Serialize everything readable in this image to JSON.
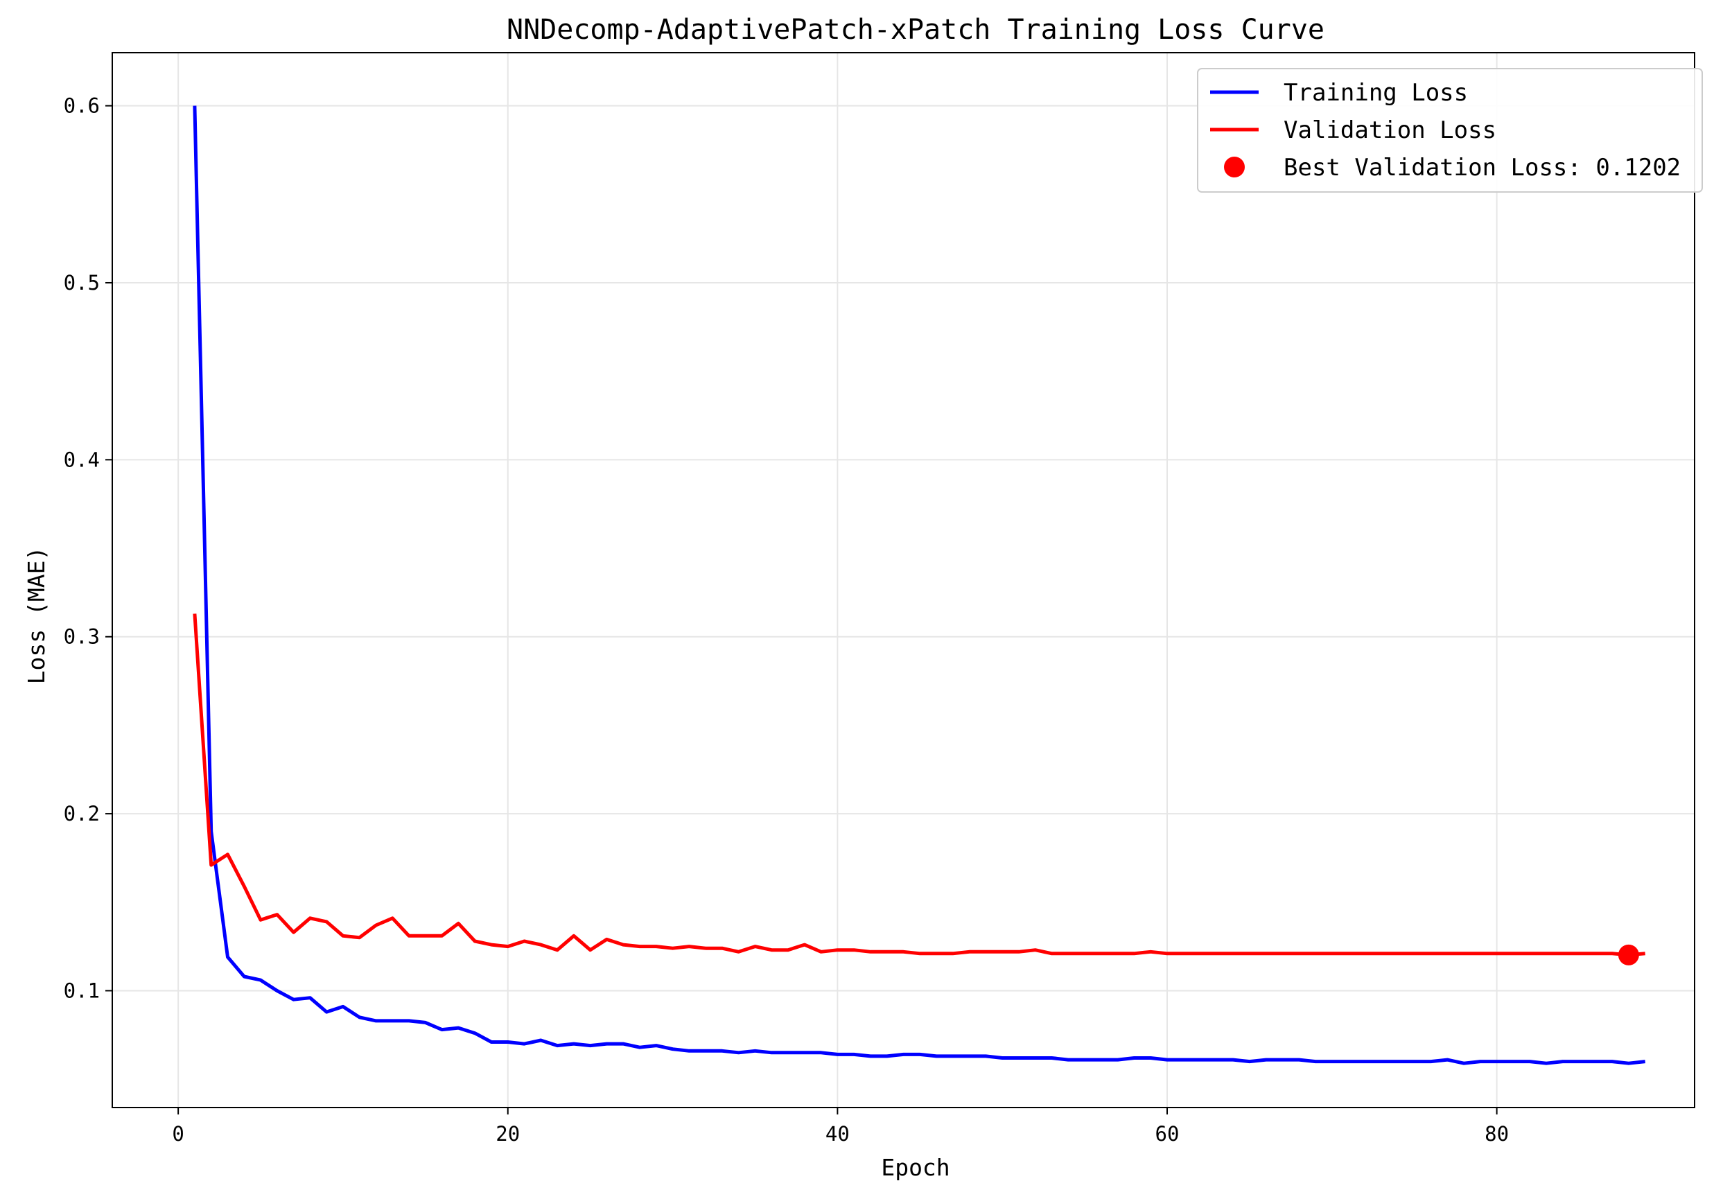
{
  "chart_data": {
    "type": "line",
    "title": "NNDecomp-AdaptivePatch-xPatch Training Loss Curve",
    "xlabel": "Epoch",
    "ylabel": "Loss (MAE)",
    "xlim": [
      -4,
      92
    ],
    "ylim": [
      0.034,
      0.63
    ],
    "xticks": [
      0,
      20,
      40,
      60,
      80
    ],
    "yticks": [
      0.1,
      0.2,
      0.3,
      0.4,
      0.5,
      0.6
    ],
    "ytick_labels": [
      "0.1",
      "0.2",
      "0.3",
      "0.4",
      "0.5",
      "0.6"
    ],
    "grid": true,
    "legend_position": "upper right",
    "series": [
      {
        "name": "Training Loss",
        "color": "#0000ff",
        "x": [
          1,
          2,
          3,
          4,
          5,
          6,
          7,
          8,
          9,
          10,
          11,
          12,
          13,
          14,
          15,
          16,
          17,
          18,
          19,
          20,
          21,
          22,
          23,
          24,
          25,
          26,
          27,
          28,
          29,
          30,
          31,
          32,
          33,
          34,
          35,
          36,
          37,
          38,
          39,
          40,
          41,
          42,
          43,
          44,
          45,
          46,
          47,
          48,
          49,
          50,
          51,
          52,
          53,
          54,
          55,
          56,
          57,
          58,
          59,
          60,
          61,
          62,
          63,
          64,
          65,
          66,
          67,
          68,
          69,
          70,
          71,
          72,
          73,
          74,
          75,
          76,
          77,
          78,
          79,
          80,
          81,
          82,
          83,
          84,
          85,
          86,
          87,
          88,
          89
        ],
        "values": [
          0.6,
          0.19,
          0.119,
          0.108,
          0.106,
          0.1,
          0.095,
          0.096,
          0.088,
          0.091,
          0.085,
          0.083,
          0.083,
          0.083,
          0.082,
          0.078,
          0.079,
          0.076,
          0.071,
          0.071,
          0.07,
          0.072,
          0.069,
          0.07,
          0.069,
          0.07,
          0.07,
          0.068,
          0.069,
          0.067,
          0.066,
          0.066,
          0.066,
          0.065,
          0.066,
          0.065,
          0.065,
          0.065,
          0.065,
          0.064,
          0.064,
          0.063,
          0.063,
          0.064,
          0.064,
          0.063,
          0.063,
          0.063,
          0.063,
          0.062,
          0.062,
          0.062,
          0.062,
          0.061,
          0.061,
          0.061,
          0.061,
          0.062,
          0.062,
          0.061,
          0.061,
          0.061,
          0.061,
          0.061,
          0.06,
          0.061,
          0.061,
          0.061,
          0.06,
          0.06,
          0.06,
          0.06,
          0.06,
          0.06,
          0.06,
          0.06,
          0.061,
          0.059,
          0.06,
          0.06,
          0.06,
          0.06,
          0.059,
          0.06,
          0.06,
          0.06,
          0.06,
          0.059,
          0.06
        ]
      },
      {
        "name": "Validation Loss",
        "color": "#ff0000",
        "x": [
          1,
          2,
          3,
          4,
          5,
          6,
          7,
          8,
          9,
          10,
          11,
          12,
          13,
          14,
          15,
          16,
          17,
          18,
          19,
          20,
          21,
          22,
          23,
          24,
          25,
          26,
          27,
          28,
          29,
          30,
          31,
          32,
          33,
          34,
          35,
          36,
          37,
          38,
          39,
          40,
          41,
          42,
          43,
          44,
          45,
          46,
          47,
          48,
          49,
          50,
          51,
          52,
          53,
          54,
          55,
          56,
          57,
          58,
          59,
          60,
          61,
          62,
          63,
          64,
          65,
          66,
          67,
          68,
          69,
          70,
          71,
          72,
          73,
          74,
          75,
          76,
          77,
          78,
          79,
          80,
          81,
          82,
          83,
          84,
          85,
          86,
          87,
          88,
          89
        ],
        "values": [
          0.313,
          0.171,
          0.177,
          0.159,
          0.14,
          0.143,
          0.133,
          0.141,
          0.139,
          0.131,
          0.13,
          0.137,
          0.141,
          0.131,
          0.131,
          0.131,
          0.138,
          0.128,
          0.126,
          0.125,
          0.128,
          0.126,
          0.123,
          0.131,
          0.123,
          0.129,
          0.126,
          0.125,
          0.125,
          0.124,
          0.125,
          0.124,
          0.124,
          0.122,
          0.125,
          0.123,
          0.123,
          0.126,
          0.122,
          0.123,
          0.123,
          0.122,
          0.122,
          0.122,
          0.121,
          0.121,
          0.121,
          0.122,
          0.122,
          0.122,
          0.122,
          0.123,
          0.121,
          0.121,
          0.121,
          0.121,
          0.121,
          0.121,
          0.122,
          0.121,
          0.121,
          0.121,
          0.121,
          0.121,
          0.121,
          0.121,
          0.121,
          0.121,
          0.121,
          0.121,
          0.121,
          0.121,
          0.121,
          0.121,
          0.121,
          0.121,
          0.121,
          0.121,
          0.121,
          0.121,
          0.121,
          0.121,
          0.121,
          0.121,
          0.121,
          0.121,
          0.121,
          0.1202,
          0.121
        ]
      }
    ],
    "best_point": {
      "label": "Best Validation Loss: 0.1202",
      "x": 88,
      "y": 0.1202,
      "color": "#ff0000"
    }
  }
}
